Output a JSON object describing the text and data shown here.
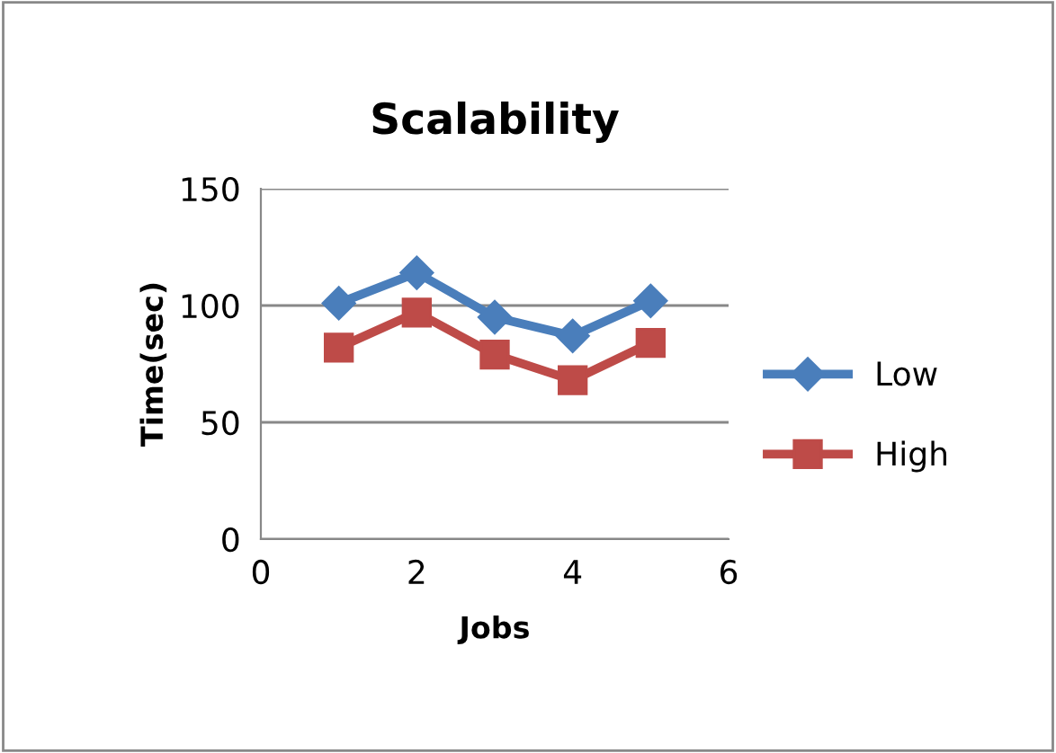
{
  "chart_data": {
    "type": "line",
    "title": "Scalability",
    "xlabel": "Jobs",
    "ylabel": "Time(sec)",
    "x": [
      1,
      2,
      3,
      4,
      5
    ],
    "series": [
      {
        "name": "Low",
        "color": "#4a7ebb",
        "values": [
          101,
          114,
          95,
          87,
          102
        ],
        "marker": "diamond"
      },
      {
        "name": "High",
        "color": "#be4b48",
        "values": [
          82,
          97,
          79,
          68,
          84
        ],
        "marker": "square"
      }
    ],
    "xlim": [
      0,
      6
    ],
    "xticks": [
      0,
      2,
      4,
      6
    ],
    "ylim": [
      0,
      150
    ],
    "yticks": [
      0,
      50,
      100,
      150
    ],
    "grid": "y",
    "legend": "right",
    "line_style": "solid"
  }
}
